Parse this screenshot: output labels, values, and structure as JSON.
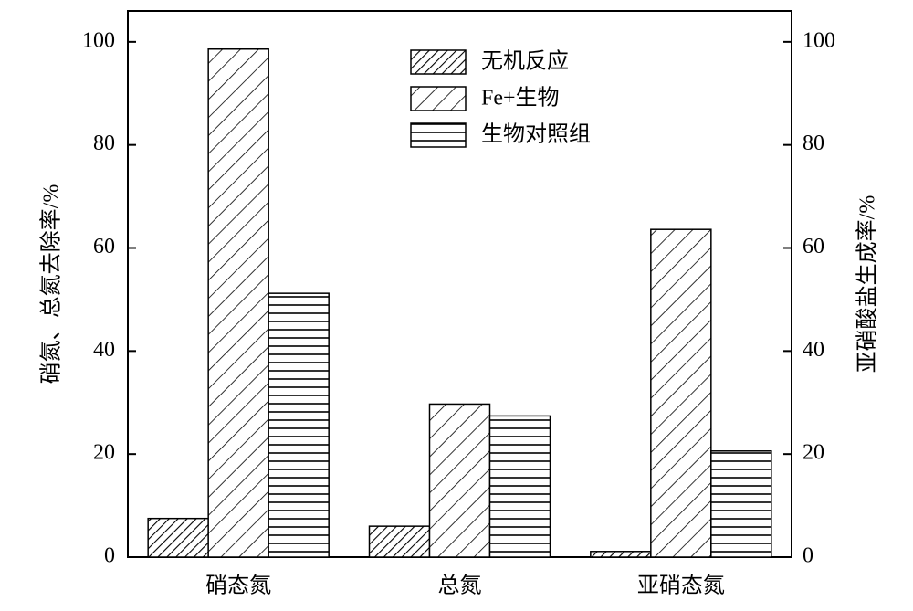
{
  "chart_data": {
    "type": "bar",
    "y_label": "硝氮、总氮去除率/%",
    "y2_label": "亚硝酸盐生成率/%",
    "categories": [
      "硝态氮",
      "总氮",
      "亚硝态氮"
    ],
    "series": [
      {
        "name": "无机反应",
        "color": "#000000",
        "pattern": "dense-diagonal",
        "values": [
          7.5,
          6.0,
          1.1
        ]
      },
      {
        "name": "Fe+生物",
        "color": "#000000",
        "pattern": "diagonal",
        "values": [
          98.6,
          29.7,
          63.6
        ]
      },
      {
        "name": "生物对照组",
        "color": "#000000",
        "pattern": "horizontal",
        "values": [
          51.2,
          27.4,
          20.6
        ]
      }
    ],
    "ylim": [
      0,
      106
    ],
    "yticks": [
      0,
      20,
      40,
      60,
      80,
      100
    ],
    "y2lim": [
      0,
      106
    ],
    "y2ticks": [
      0,
      20,
      40,
      60,
      80,
      100
    ],
    "legend": "top-center",
    "grid": false
  }
}
